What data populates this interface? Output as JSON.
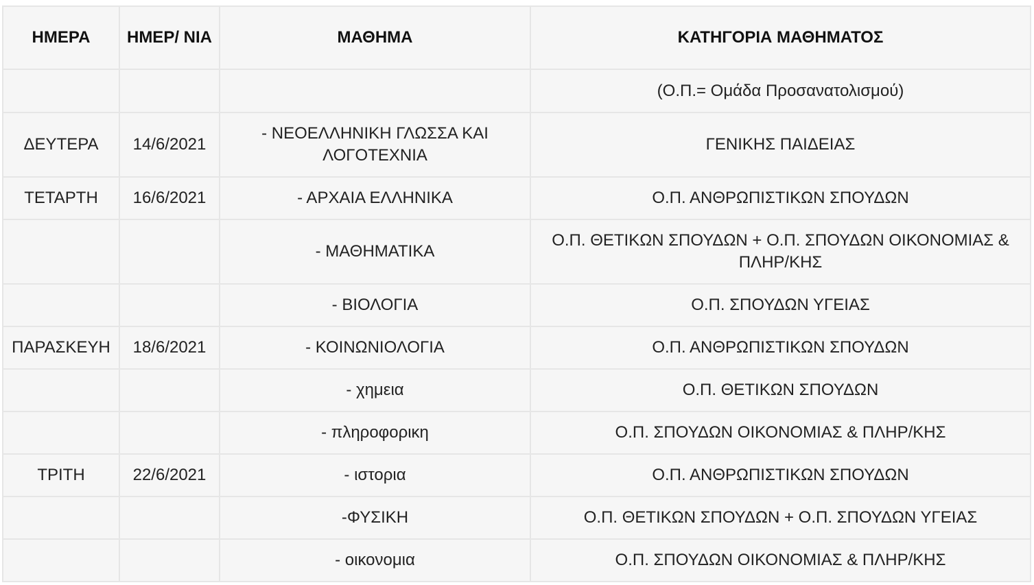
{
  "headers": [
    "ΗΜΕΡΑ",
    "ΗΜΕΡ/ ΝΙΑ",
    "ΜΑΘΗΜΑ",
    "ΚΑΤΗΓΟΡΙΑ ΜΑΘΗΜΑΤΟΣ"
  ],
  "rows": [
    {
      "day": "",
      "date": "",
      "subject": "",
      "category": "(Ο.Π.= Ομάδα Προσανατολισμού)"
    },
    {
      "day": "ΔΕΥΤΕΡΑ",
      "date": "14/6/2021",
      "subject": "- ΝΕΟΕΛΛΗΝΙΚΗ ΓΛΩΣΣΑ ΚΑΙ ΛΟΓΟΤΕΧΝΙΑ",
      "category": "ΓΕΝΙΚΗΣ ΠΑΙΔΕΙΑΣ"
    },
    {
      "day": "ΤΕΤΑΡΤΗ",
      "date": "16/6/2021",
      "subject": "- ΑΡΧΑΙΑ ΕΛΛΗΝΙΚΑ",
      "category": "Ο.Π. ΑΝΘΡΩΠΙΣΤΙΚΩΝ ΣΠΟΥΔΩΝ"
    },
    {
      "day": "",
      "date": "",
      "subject": "- ΜΑΘΗΜΑΤΙΚΑ",
      "category": "Ο.Π. ΘΕΤΙΚΩΝ ΣΠΟΥΔΩΝ + Ο.Π. ΣΠΟΥΔΩΝ ΟΙΚΟΝΟΜΙΑΣ & ΠΛΗΡ/ΚΗΣ"
    },
    {
      "day": "",
      "date": "",
      "subject": "- ΒΙΟΛΟΓΙΑ",
      "category": "Ο.Π. ΣΠΟΥΔΩΝ ΥΓΕΙΑΣ"
    },
    {
      "day": "ΠΑΡΑΣΚΕΥΗ",
      "date": "18/6/2021",
      "subject": "- ΚΟΙΝΩΝΙΟΛΟΓΙΑ",
      "category": "Ο.Π. ΑΝΘΡΩΠΙΣΤΙΚΩΝ ΣΠΟΥΔΩΝ"
    },
    {
      "day": "",
      "date": "",
      "subject": "- χημεια",
      "category": "Ο.Π. ΘΕΤΙΚΩΝ ΣΠΟΥΔΩΝ"
    },
    {
      "day": "",
      "date": "",
      "subject": "- πληροφορικη",
      "category": "Ο.Π. ΣΠΟΥΔΩΝ ΟΙΚΟΝΟΜΙΑΣ & ΠΛΗΡ/ΚΗΣ"
    },
    {
      "day": "ΤΡΙΤΗ",
      "date": "22/6/2021",
      "subject": "- ιστορια",
      "category": "Ο.Π. ΑΝΘΡΩΠΙΣΤΙΚΩΝ ΣΠΟΥΔΩΝ"
    },
    {
      "day": "",
      "date": "",
      "subject": "-ΦΥΣΙΚΗ",
      "category": "Ο.Π. ΘΕΤΙΚΩΝ ΣΠΟΥΔΩΝ + Ο.Π. ΣΠΟΥΔΩΝ ΥΓΕΙΑΣ"
    },
    {
      "day": "",
      "date": "",
      "subject": "- οικονομια",
      "category": "Ο.Π. ΣΠΟΥΔΩΝ ΟΙΚΟΝΟΜΙΑΣ & ΠΛΗΡ/ΚΗΣ"
    }
  ]
}
